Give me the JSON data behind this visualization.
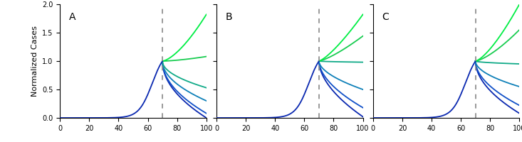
{
  "intervention_x": 70,
  "xlim": [
    0,
    100
  ],
  "ylim": [
    0,
    2.0
  ],
  "ylabel": "Normalized Cases",
  "panel_labels": [
    "A",
    "B",
    "C"
  ],
  "dashed_line_color": "#888888",
  "yticks": [
    0.0,
    0.5,
    1.0,
    1.5,
    2.0
  ],
  "xticks": [
    0,
    20,
    40,
    60,
    80,
    100
  ],
  "colors": [
    "#0a28b0",
    "#1050c8",
    "#0e80b8",
    "#10aa88",
    "#18cc50",
    "#00ee44"
  ],
  "panel_post_ends_A": [
    0.0,
    0.08,
    0.3,
    0.53,
    1.08,
    1.82
  ],
  "panel_post_ends_B": [
    0.02,
    0.18,
    0.5,
    0.98,
    1.44,
    1.82
  ],
  "panel_post_ends_C": [
    0.08,
    0.22,
    0.55,
    0.95,
    1.55,
    2.0
  ],
  "pre_sigmoid_rate": 0.22,
  "pre_sigmoid_x0": 63,
  "figsize": [
    7.33,
    2.0
  ],
  "dpi": 100
}
